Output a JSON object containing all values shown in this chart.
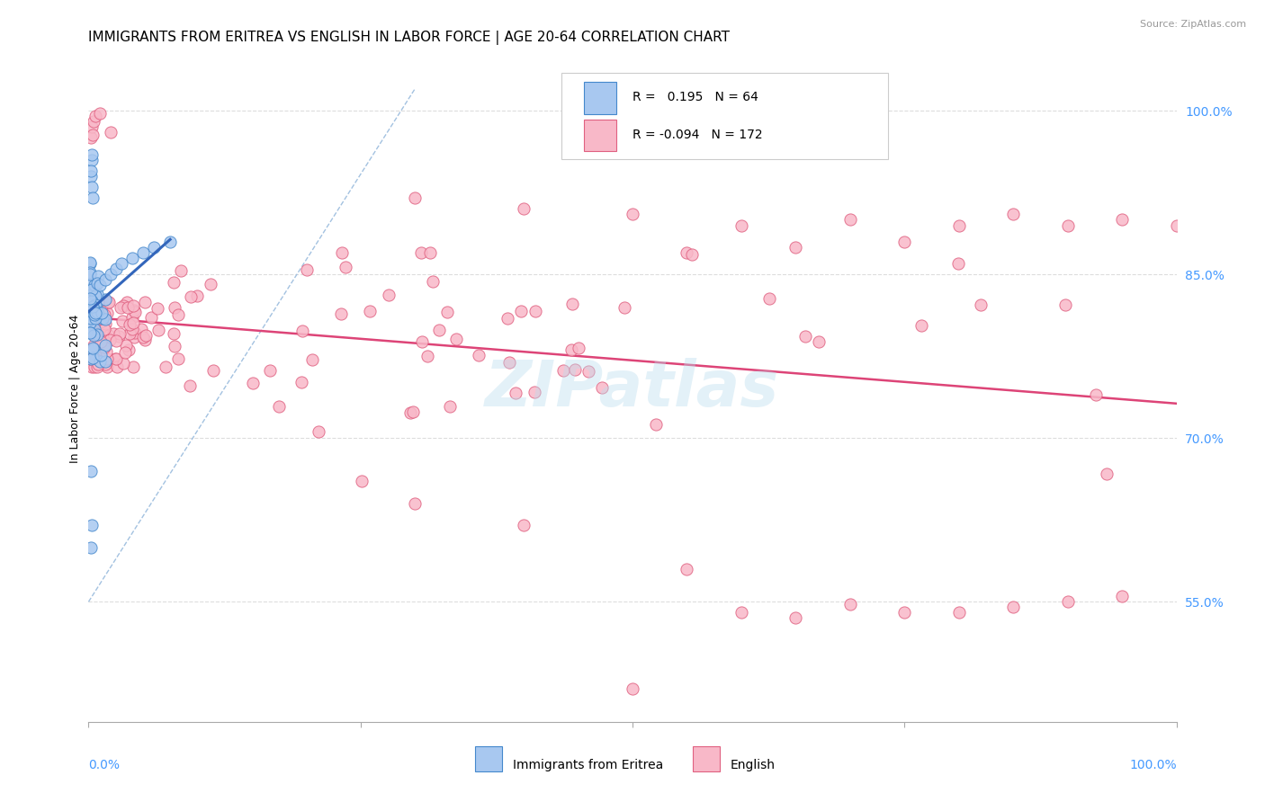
{
  "title": "IMMIGRANTS FROM ERITREA VS ENGLISH IN LABOR FORCE | AGE 20-64 CORRELATION CHART",
  "source": "Source: ZipAtlas.com",
  "ylabel": "In Labor Force | Age 20-64",
  "legend_blue_label": "Immigrants from Eritrea",
  "legend_pink_label": "English",
  "legend_blue_R": "0.195",
  "legend_blue_N": "64",
  "legend_pink_R": "-0.094",
  "legend_pink_N": "172",
  "blue_color": "#A8C8F0",
  "blue_edge_color": "#4488CC",
  "pink_color": "#F8B8C8",
  "pink_edge_color": "#E06080",
  "blue_line_color": "#3366BB",
  "pink_line_color": "#DD4477",
  "dashed_line_color": "#99BBDD",
  "background_color": "#FFFFFF",
  "grid_color": "#DDDDDD",
  "tick_color": "#4499FF",
  "title_fontsize": 11,
  "axis_label_fontsize": 9,
  "tick_fontsize": 10,
  "source_fontsize": 8,
  "xlim": [
    0.0,
    1.0
  ],
  "ylim": [
    0.44,
    1.05
  ],
  "y_tick_vals": [
    0.55,
    0.7,
    0.85,
    1.0
  ],
  "y_tick_labels": [
    "55.0%",
    "70.0%",
    "85.0%",
    "100.0%"
  ]
}
